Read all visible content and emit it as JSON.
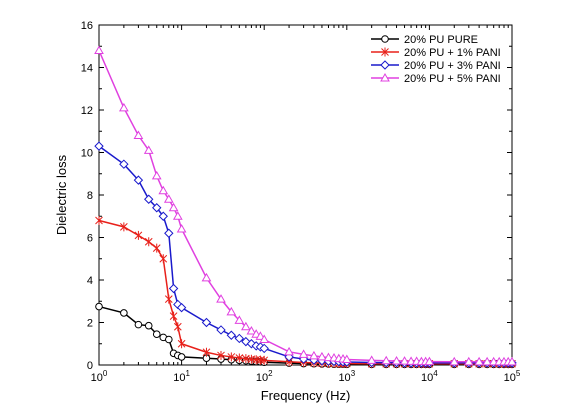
{
  "chart_data": {
    "type": "line",
    "xlabel": "Frequency (Hz)",
    "ylabel": "Dielectric loss",
    "x_scale": "log",
    "xlim": [
      1,
      100000
    ],
    "ylim": [
      0,
      16
    ],
    "grid": false,
    "legend_position": "top-right",
    "x_ticks": [
      {
        "value": 1,
        "base": "10",
        "exp": "0"
      },
      {
        "value": 10,
        "base": "10",
        "exp": "1"
      },
      {
        "value": 100,
        "base": "10",
        "exp": "2"
      },
      {
        "value": 1000,
        "base": "10",
        "exp": "3"
      },
      {
        "value": 10000,
        "base": "10",
        "exp": "4"
      },
      {
        "value": 100000,
        "base": "10",
        "exp": "5"
      }
    ],
    "y_ticks": [
      0,
      2,
      4,
      6,
      8,
      10,
      12,
      14,
      16
    ],
    "x": [
      1,
      2,
      3,
      4,
      5,
      6,
      7,
      8,
      9,
      10,
      20,
      30,
      40,
      50,
      60,
      70,
      80,
      90,
      100,
      200,
      300,
      400,
      500,
      600,
      700,
      800,
      900,
      1000,
      2000,
      3000,
      4000,
      5000,
      6000,
      7000,
      8000,
      9000,
      10000,
      20000,
      30000,
      40000,
      50000,
      60000,
      70000,
      80000,
      90000,
      100000
    ],
    "series": [
      {
        "name": "20% PU PURE",
        "color": "#000000",
        "marker": "circle",
        "values": [
          2.75,
          2.45,
          1.9,
          1.85,
          1.45,
          1.3,
          1.2,
          0.55,
          0.45,
          0.38,
          0.32,
          0.28,
          0.25,
          0.22,
          0.2,
          0.18,
          0.16,
          0.15,
          0.13,
          0.09,
          0.07,
          0.06,
          0.05,
          0.05,
          0.04,
          0.04,
          0.04,
          0.03,
          0.03,
          0.03,
          0.03,
          0.03,
          0.03,
          0.03,
          0.03,
          0.03,
          0.03,
          0.03,
          0.03,
          0.03,
          0.03,
          0.03,
          0.03,
          0.03,
          0.03,
          0.03
        ]
      },
      {
        "name": "20% PU + 1% PANI",
        "color": "#e8201a",
        "marker": "star",
        "values": [
          6.8,
          6.5,
          6.1,
          5.8,
          5.5,
          5.0,
          3.1,
          2.3,
          1.8,
          1.0,
          0.6,
          0.45,
          0.38,
          0.33,
          0.3,
          0.27,
          0.25,
          0.23,
          0.22,
          0.15,
          0.12,
          0.1,
          0.09,
          0.08,
          0.08,
          0.07,
          0.07,
          0.07,
          0.06,
          0.06,
          0.06,
          0.06,
          0.06,
          0.06,
          0.06,
          0.06,
          0.06,
          0.06,
          0.06,
          0.06,
          0.06,
          0.06,
          0.06,
          0.06,
          0.06,
          0.06
        ]
      },
      {
        "name": "20% PU + 3% PANI",
        "color": "#1a1acc",
        "marker": "diamond",
        "values": [
          10.3,
          9.45,
          8.7,
          7.8,
          7.4,
          7.0,
          6.2,
          3.6,
          2.85,
          2.7,
          2.0,
          1.65,
          1.4,
          1.25,
          1.1,
          1.0,
          0.9,
          0.85,
          0.78,
          0.38,
          0.28,
          0.23,
          0.2,
          0.18,
          0.17,
          0.16,
          0.15,
          0.14,
          0.12,
          0.11,
          0.11,
          0.1,
          0.1,
          0.1,
          0.1,
          0.1,
          0.1,
          0.1,
          0.1,
          0.1,
          0.1,
          0.1,
          0.1,
          0.1,
          0.1,
          0.1
        ]
      },
      {
        "name": "20% PU + 5% PANI",
        "color": "#e040e0",
        "marker": "triangle",
        "values": [
          14.8,
          12.1,
          10.8,
          10.1,
          8.9,
          8.2,
          7.8,
          7.4,
          7.0,
          6.4,
          4.1,
          3.1,
          2.5,
          2.1,
          1.8,
          1.6,
          1.45,
          1.35,
          1.2,
          0.62,
          0.5,
          0.43,
          0.38,
          0.35,
          0.33,
          0.3,
          0.28,
          0.26,
          0.22,
          0.2,
          0.19,
          0.18,
          0.17,
          0.17,
          0.16,
          0.16,
          0.16,
          0.15,
          0.15,
          0.15,
          0.15,
          0.15,
          0.15,
          0.15,
          0.15,
          0.15
        ]
      }
    ]
  }
}
